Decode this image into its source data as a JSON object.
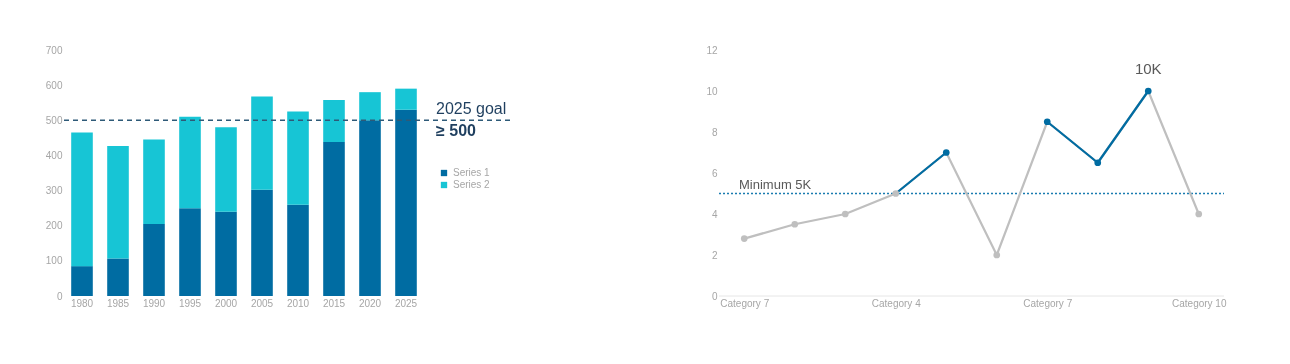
{
  "chart_data": [
    {
      "type": "bar",
      "stacked": true,
      "categories": [
        "1980",
        "1985",
        "1990",
        "1995",
        "2000",
        "2005",
        "2010",
        "2015",
        "2020",
        "2025"
      ],
      "series": [
        {
          "name": "Series 1",
          "color": "#006ca2",
          "values": [
            85,
            107,
            205,
            250,
            240,
            302,
            260,
            438,
            500,
            530
          ]
        },
        {
          "name": "Series 2",
          "color": "#17c5d5",
          "values": [
            380,
            320,
            240,
            260,
            240,
            266,
            265,
            120,
            80,
            60
          ]
        }
      ],
      "ylim": [
        0,
        700
      ],
      "yticks": [
        0,
        100,
        200,
        300,
        400,
        500,
        600,
        700
      ],
      "grid": false,
      "legend": "right",
      "ref_lines": [
        {
          "axis": "y",
          "value": 500,
          "label": "2025 goal\n≥ 500",
          "color": "#2e5a78",
          "line_style": "dashed"
        }
      ]
    },
    {
      "type": "line",
      "categories": [
        "Category 7",
        null,
        null,
        "Category 4",
        null,
        null,
        "Category 7",
        null,
        null,
        "Category 10"
      ],
      "series": [
        {
          "color": "#bfbfbf",
          "marker": "circle",
          "values": [
            2.8,
            3.5,
            4,
            5,
            7,
            2,
            8.5,
            6.5,
            10,
            4
          ],
          "colors": [
            "#bfbfbf",
            "#bfbfbf",
            "#bfbfbf",
            "#bfbfbf",
            "#006ca2",
            "#bfbfbf",
            "#006ca2",
            "#006ca2",
            "#006ca2",
            "#bfbfbf"
          ]
        },
        {
          "color": "#006ca2",
          "marker": "none",
          "values": [
            null,
            null,
            null,
            5,
            7,
            null,
            8.5,
            6.5,
            10,
            null
          ]
        }
      ],
      "ylim": [
        0,
        12
      ],
      "yticks": [
        0,
        2,
        4,
        6,
        8,
        10,
        12
      ],
      "grid": false,
      "ref_lines": [
        {
          "axis": "y",
          "value": 5,
          "label": "Minimum 5K",
          "color": "#1a7bb0",
          "line_style": "dotted"
        }
      ],
      "annotations": [
        {
          "text": "10K",
          "y": 10
        }
      ]
    }
  ]
}
